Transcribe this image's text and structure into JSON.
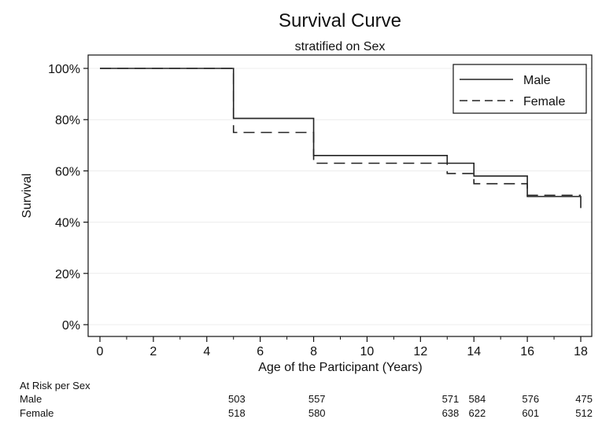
{
  "chart_data": {
    "type": "line",
    "title": "Survival Curve",
    "subtitle": "stratified on Sex",
    "xlabel": "Age of the Participant (Years)",
    "ylabel": "Survival",
    "xlim": [
      0,
      18
    ],
    "ylim": [
      0,
      1
    ],
    "x_ticks": [
      0,
      2,
      4,
      6,
      8,
      10,
      12,
      14,
      16,
      18
    ],
    "y_ticks": [
      0,
      0.2,
      0.4,
      0.6,
      0.8,
      1.0
    ],
    "y_tick_labels": [
      "0%",
      "20%",
      "40%",
      "60%",
      "80%",
      "100%"
    ],
    "grid": true,
    "legend_position": "top-right",
    "series": [
      {
        "name": "Male",
        "style": "solid",
        "color": "#222222",
        "x": [
          0,
          5,
          8,
          13,
          14,
          16,
          18,
          18
        ],
        "y": [
          1.0,
          0.805,
          0.66,
          0.63,
          0.58,
          0.5,
          0.5,
          0.455
        ]
      },
      {
        "name": "Female",
        "style": "dashed",
        "color": "#222222",
        "x": [
          0,
          5,
          8,
          13,
          14,
          16,
          18
        ],
        "y": [
          1.0,
          0.75,
          0.63,
          0.59,
          0.55,
          0.505,
          0.505
        ]
      }
    ],
    "at_risk": {
      "label": "At Risk per Sex",
      "times": [
        5,
        8,
        13,
        14,
        16,
        18
      ],
      "rows": [
        {
          "name": "Male",
          "values": [
            "503",
            "557",
            "571",
            "584",
            "576",
            "475"
          ]
        },
        {
          "name": "Female",
          "values": [
            "518",
            "580",
            "638",
            "622",
            "601",
            "512"
          ]
        }
      ]
    }
  }
}
